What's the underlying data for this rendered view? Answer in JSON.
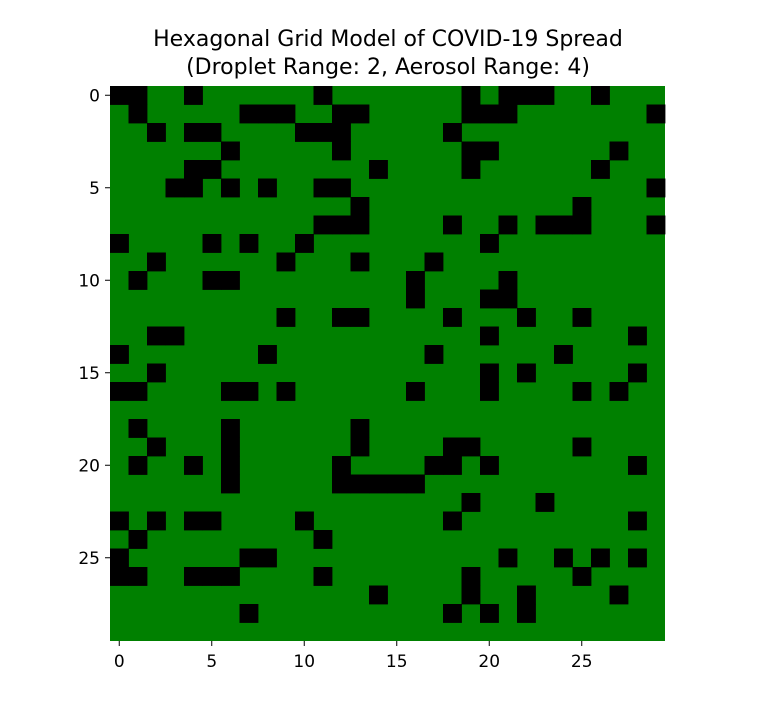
{
  "chart_data": {
    "type": "heatmap",
    "title": "Hexagonal Grid Model of COVID-19 Spread",
    "subtitle": "(Droplet Range: 2, Aerosol Range: 4)",
    "xlabel": "",
    "ylabel": "",
    "rows": 30,
    "cols": 30,
    "x_ticks": [
      "0",
      "5",
      "10",
      "15",
      "20",
      "25"
    ],
    "y_ticks": [
      "0",
      "5",
      "10",
      "15",
      "20",
      "25"
    ],
    "xlim": [
      -0.5,
      29.5
    ],
    "ylim": [
      29.5,
      -0.5
    ],
    "grid": false,
    "legend": "none",
    "colors": {
      "healthy": "#008000",
      "infected": "#000000"
    },
    "infected_cells": [
      [
        0,
        0
      ],
      [
        0,
        1
      ],
      [
        0,
        4
      ],
      [
        0,
        11
      ],
      [
        0,
        19
      ],
      [
        0,
        21
      ],
      [
        0,
        22
      ],
      [
        0,
        23
      ],
      [
        0,
        26
      ],
      [
        1,
        1
      ],
      [
        1,
        7
      ],
      [
        1,
        8
      ],
      [
        1,
        9
      ],
      [
        1,
        12
      ],
      [
        1,
        13
      ],
      [
        1,
        19
      ],
      [
        1,
        20
      ],
      [
        1,
        21
      ],
      [
        1,
        29
      ],
      [
        2,
        2
      ],
      [
        2,
        4
      ],
      [
        2,
        5
      ],
      [
        2,
        10
      ],
      [
        2,
        11
      ],
      [
        2,
        12
      ],
      [
        2,
        18
      ],
      [
        3,
        6
      ],
      [
        3,
        12
      ],
      [
        3,
        19
      ],
      [
        3,
        20
      ],
      [
        3,
        27
      ],
      [
        4,
        4
      ],
      [
        4,
        5
      ],
      [
        4,
        14
      ],
      [
        4,
        19
      ],
      [
        4,
        26
      ],
      [
        5,
        3
      ],
      [
        5,
        4
      ],
      [
        5,
        6
      ],
      [
        5,
        8
      ],
      [
        5,
        11
      ],
      [
        5,
        12
      ],
      [
        5,
        29
      ],
      [
        6,
        13
      ],
      [
        6,
        25
      ],
      [
        7,
        11
      ],
      [
        7,
        12
      ],
      [
        7,
        13
      ],
      [
        7,
        18
      ],
      [
        7,
        21
      ],
      [
        7,
        23
      ],
      [
        7,
        24
      ],
      [
        7,
        25
      ],
      [
        7,
        29
      ],
      [
        8,
        0
      ],
      [
        8,
        5
      ],
      [
        8,
        7
      ],
      [
        8,
        10
      ],
      [
        8,
        20
      ],
      [
        9,
        2
      ],
      [
        9,
        9
      ],
      [
        9,
        13
      ],
      [
        9,
        17
      ],
      [
        10,
        1
      ],
      [
        10,
        5
      ],
      [
        10,
        6
      ],
      [
        10,
        16
      ],
      [
        10,
        21
      ],
      [
        11,
        16
      ],
      [
        11,
        20
      ],
      [
        11,
        21
      ],
      [
        12,
        9
      ],
      [
        12,
        12
      ],
      [
        12,
        13
      ],
      [
        12,
        18
      ],
      [
        12,
        22
      ],
      [
        12,
        25
      ],
      [
        13,
        2
      ],
      [
        13,
        3
      ],
      [
        13,
        20
      ],
      [
        13,
        28
      ],
      [
        14,
        0
      ],
      [
        14,
        8
      ],
      [
        14,
        17
      ],
      [
        14,
        24
      ],
      [
        15,
        2
      ],
      [
        15,
        20
      ],
      [
        15,
        22
      ],
      [
        15,
        28
      ],
      [
        16,
        0
      ],
      [
        16,
        1
      ],
      [
        16,
        6
      ],
      [
        16,
        7
      ],
      [
        16,
        9
      ],
      [
        16,
        16
      ],
      [
        16,
        20
      ],
      [
        16,
        25
      ],
      [
        16,
        27
      ],
      [
        18,
        1
      ],
      [
        18,
        6
      ],
      [
        18,
        13
      ],
      [
        19,
        2
      ],
      [
        19,
        6
      ],
      [
        19,
        13
      ],
      [
        19,
        18
      ],
      [
        19,
        19
      ],
      [
        19,
        25
      ],
      [
        20,
        1
      ],
      [
        20,
        4
      ],
      [
        20,
        6
      ],
      [
        20,
        12
      ],
      [
        20,
        17
      ],
      [
        20,
        18
      ],
      [
        20,
        20
      ],
      [
        20,
        28
      ],
      [
        21,
        6
      ],
      [
        21,
        12
      ],
      [
        21,
        13
      ],
      [
        21,
        14
      ],
      [
        21,
        15
      ],
      [
        21,
        16
      ],
      [
        22,
        19
      ],
      [
        22,
        23
      ],
      [
        23,
        0
      ],
      [
        23,
        2
      ],
      [
        23,
        4
      ],
      [
        23,
        5
      ],
      [
        23,
        10
      ],
      [
        23,
        18
      ],
      [
        23,
        28
      ],
      [
        24,
        1
      ],
      [
        24,
        11
      ],
      [
        25,
        0
      ],
      [
        25,
        7
      ],
      [
        25,
        8
      ],
      [
        25,
        21
      ],
      [
        25,
        24
      ],
      [
        25,
        26
      ],
      [
        25,
        28
      ],
      [
        26,
        0
      ],
      [
        26,
        1
      ],
      [
        26,
        4
      ],
      [
        26,
        5
      ],
      [
        26,
        6
      ],
      [
        26,
        11
      ],
      [
        26,
        19
      ],
      [
        26,
        25
      ],
      [
        27,
        14
      ],
      [
        27,
        19
      ],
      [
        27,
        22
      ],
      [
        27,
        27
      ],
      [
        28,
        7
      ],
      [
        28,
        18
      ],
      [
        28,
        20
      ],
      [
        28,
        22
      ]
    ]
  }
}
